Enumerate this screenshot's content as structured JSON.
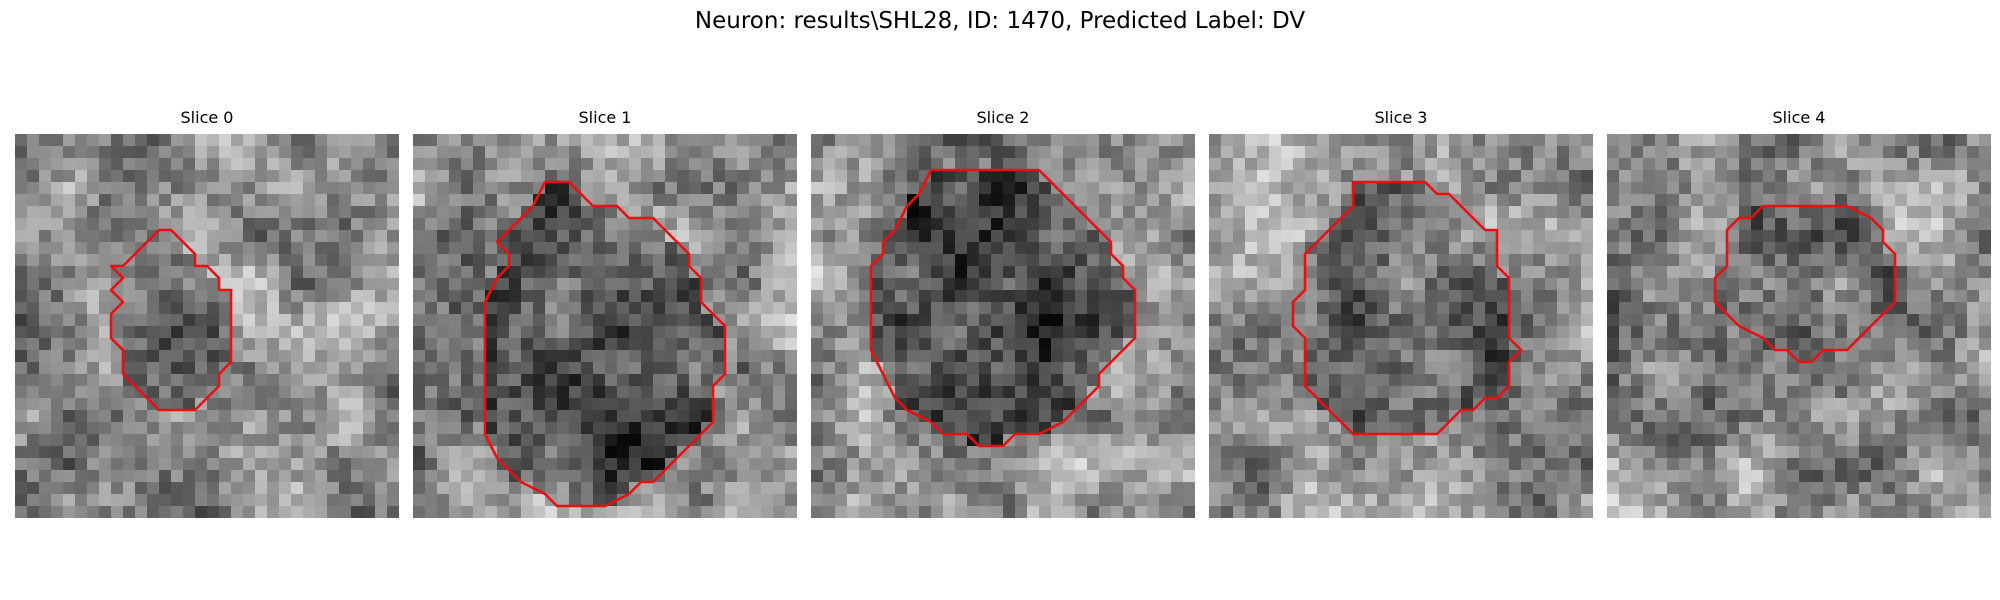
{
  "figure": {
    "title": "Neuron: results\\SHL28, ID: 1470, Predicted Label: DV"
  },
  "contour_color": "#e81010",
  "slices": [
    {
      "title": "Slice 0",
      "seed": 11,
      "dark": 0.55,
      "contour": [
        [
          13,
          8
        ],
        [
          15,
          10
        ],
        [
          15,
          11
        ],
        [
          16,
          11
        ],
        [
          17,
          12
        ],
        [
          17,
          13
        ],
        [
          18,
          13
        ],
        [
          18,
          16
        ],
        [
          18,
          19
        ],
        [
          17,
          20
        ],
        [
          17,
          21
        ],
        [
          16,
          22
        ],
        [
          15,
          23
        ],
        [
          14,
          23
        ],
        [
          12,
          23
        ],
        [
          11,
          22
        ],
        [
          10,
          21
        ],
        [
          9,
          20
        ],
        [
          9,
          18
        ],
        [
          8,
          17
        ],
        [
          8,
          15
        ],
        [
          9,
          14
        ],
        [
          8,
          13
        ],
        [
          9,
          12
        ],
        [
          8,
          11
        ],
        [
          9,
          11
        ],
        [
          10,
          10
        ],
        [
          11,
          9
        ],
        [
          12,
          8
        ],
        [
          13,
          8
        ]
      ]
    },
    {
      "title": "Slice 1",
      "seed": 23,
      "dark": 0.7,
      "contour": [
        [
          11,
          4
        ],
        [
          13,
          4
        ],
        [
          14,
          5
        ],
        [
          15,
          6
        ],
        [
          17,
          6
        ],
        [
          18,
          7
        ],
        [
          20,
          7
        ],
        [
          22,
          9
        ],
        [
          23,
          10
        ],
        [
          23,
          11
        ],
        [
          24,
          12
        ],
        [
          24,
          14
        ],
        [
          26,
          16
        ],
        [
          26,
          20
        ],
        [
          25,
          21
        ],
        [
          25,
          24
        ],
        [
          24,
          25
        ],
        [
          23,
          26
        ],
        [
          22,
          27
        ],
        [
          21,
          28
        ],
        [
          20,
          29
        ],
        [
          19,
          29
        ],
        [
          18,
          30
        ],
        [
          16,
          31
        ],
        [
          12,
          31
        ],
        [
          11,
          30
        ],
        [
          9,
          29
        ],
        [
          8,
          28
        ],
        [
          7,
          27
        ],
        [
          6,
          25
        ],
        [
          6,
          22
        ],
        [
          6,
          18
        ],
        [
          6,
          14
        ],
        [
          7,
          12
        ],
        [
          8,
          11
        ],
        [
          8,
          10
        ],
        [
          7,
          9
        ],
        [
          8,
          8
        ],
        [
          9,
          7
        ],
        [
          10,
          6
        ],
        [
          11,
          4
        ]
      ]
    },
    {
      "title": "Slice 2",
      "seed": 37,
      "dark": 0.75,
      "contour": [
        [
          10,
          3
        ],
        [
          19,
          3
        ],
        [
          20,
          4
        ],
        [
          21,
          5
        ],
        [
          22,
          6
        ],
        [
          23,
          7
        ],
        [
          24,
          8
        ],
        [
          25,
          9
        ],
        [
          25,
          10
        ],
        [
          26,
          11
        ],
        [
          26,
          12
        ],
        [
          27,
          13
        ],
        [
          27,
          17
        ],
        [
          26,
          18
        ],
        [
          25,
          19
        ],
        [
          24,
          20
        ],
        [
          24,
          21
        ],
        [
          23,
          22
        ],
        [
          22,
          23
        ],
        [
          21,
          24
        ],
        [
          19,
          25
        ],
        [
          17,
          25
        ],
        [
          16,
          26
        ],
        [
          14,
          26
        ],
        [
          13,
          25
        ],
        [
          11,
          25
        ],
        [
          10,
          24
        ],
        [
          8,
          23
        ],
        [
          7,
          22
        ],
        [
          6,
          20
        ],
        [
          5,
          18
        ],
        [
          5,
          16
        ],
        [
          5,
          14
        ],
        [
          5,
          11
        ],
        [
          6,
          10
        ],
        [
          6,
          9
        ],
        [
          7,
          8
        ],
        [
          8,
          6
        ],
        [
          9,
          5
        ],
        [
          10,
          3
        ]
      ]
    },
    {
      "title": "Slice 3",
      "seed": 51,
      "dark": 0.5,
      "contour": [
        [
          12,
          4
        ],
        [
          18,
          4
        ],
        [
          19,
          5
        ],
        [
          20,
          5
        ],
        [
          22,
          7
        ],
        [
          23,
          8
        ],
        [
          24,
          8
        ],
        [
          24,
          11
        ],
        [
          25,
          12
        ],
        [
          25,
          17
        ],
        [
          26,
          18
        ],
        [
          25,
          19
        ],
        [
          25,
          21
        ],
        [
          24,
          22
        ],
        [
          23,
          22
        ],
        [
          22,
          23
        ],
        [
          21,
          23
        ],
        [
          20,
          24
        ],
        [
          19,
          25
        ],
        [
          16,
          25
        ],
        [
          12,
          25
        ],
        [
          11,
          24
        ],
        [
          10,
          23
        ],
        [
          9,
          22
        ],
        [
          8,
          21
        ],
        [
          8,
          19
        ],
        [
          8,
          17
        ],
        [
          7,
          16
        ],
        [
          7,
          14
        ],
        [
          8,
          13
        ],
        [
          8,
          10
        ],
        [
          9,
          9
        ],
        [
          10,
          8
        ],
        [
          11,
          7
        ],
        [
          12,
          6
        ],
        [
          12,
          4
        ]
      ]
    },
    {
      "title": "Slice 4",
      "seed": 67,
      "dark": 0.35,
      "contour": [
        [
          13,
          6
        ],
        [
          20,
          6
        ],
        [
          22,
          7
        ],
        [
          23,
          8
        ],
        [
          23,
          9
        ],
        [
          24,
          10
        ],
        [
          24,
          14
        ],
        [
          23,
          15
        ],
        [
          22,
          16
        ],
        [
          21,
          17
        ],
        [
          20,
          18
        ],
        [
          18,
          18
        ],
        [
          17,
          19
        ],
        [
          16,
          19
        ],
        [
          15,
          18
        ],
        [
          14,
          18
        ],
        [
          13,
          17
        ],
        [
          11,
          16
        ],
        [
          10,
          15
        ],
        [
          9,
          14
        ],
        [
          9,
          12
        ],
        [
          10,
          11
        ],
        [
          10,
          8
        ],
        [
          11,
          7
        ],
        [
          12,
          7
        ],
        [
          13,
          6
        ]
      ]
    }
  ]
}
